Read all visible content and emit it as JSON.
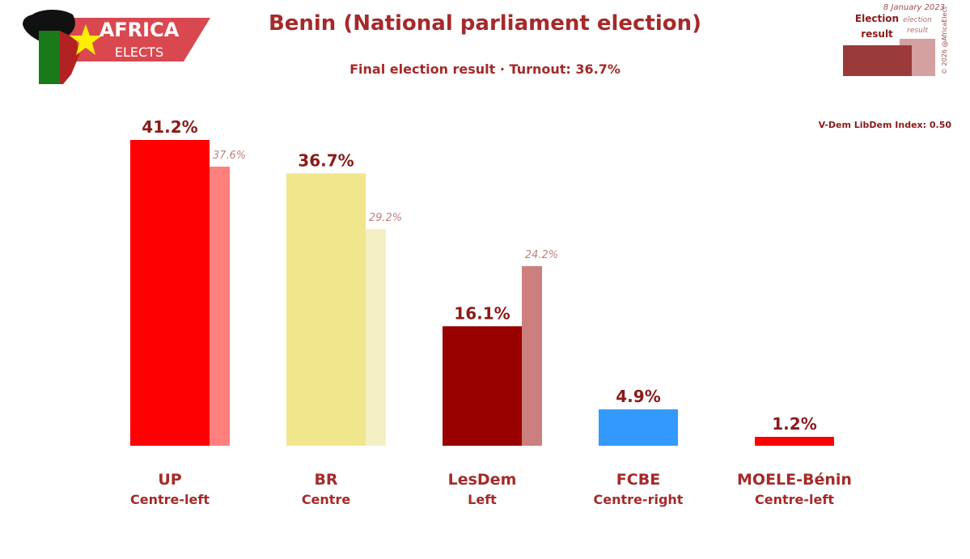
{
  "logo": {
    "line1": "AFRICA",
    "line2": "ELECTS"
  },
  "header": {
    "title": "Benin (National parliament election)",
    "subtitle": "Final election result · Turnout: 36.7%"
  },
  "legend": {
    "date": "8 January 2023",
    "current_label_1": "Election",
    "current_label_2": "result",
    "previous_label_1": "election",
    "previous_label_2": "result",
    "copyright": "© 2026 @AfricaElect"
  },
  "vdem": "V-Dem LibDem Index: 0.50",
  "chart_data": {
    "type": "bar",
    "title": "Benin (National parliament election)",
    "ylim": [
      0,
      45
    ],
    "categories": [
      "UP",
      "BR",
      "LesDem",
      "FCBE",
      "MOELE-Bénin"
    ],
    "ideologies": [
      "Centre-left",
      "Centre",
      "Left",
      "Centre-right",
      "Centre-left"
    ],
    "series": [
      {
        "name": "Election result",
        "values": [
          41.2,
          36.7,
          16.1,
          4.9,
          1.2
        ],
        "labels": [
          "41.2%",
          "36.7%",
          "16.1%",
          "4.9%",
          "1.2%"
        ],
        "colors": [
          "#ff0000",
          "#f0e68c",
          "#990000",
          "#3399ff",
          "#ff0000"
        ]
      },
      {
        "name": "Previous election result",
        "values": [
          37.6,
          29.2,
          24.2,
          null,
          null
        ],
        "labels": [
          "37.6%",
          "29.2%",
          "24.2%",
          "",
          ""
        ],
        "colors": [
          "#ff7f7f",
          "#f5f0c4",
          "#cc7f7f",
          "",
          ""
        ]
      }
    ]
  }
}
